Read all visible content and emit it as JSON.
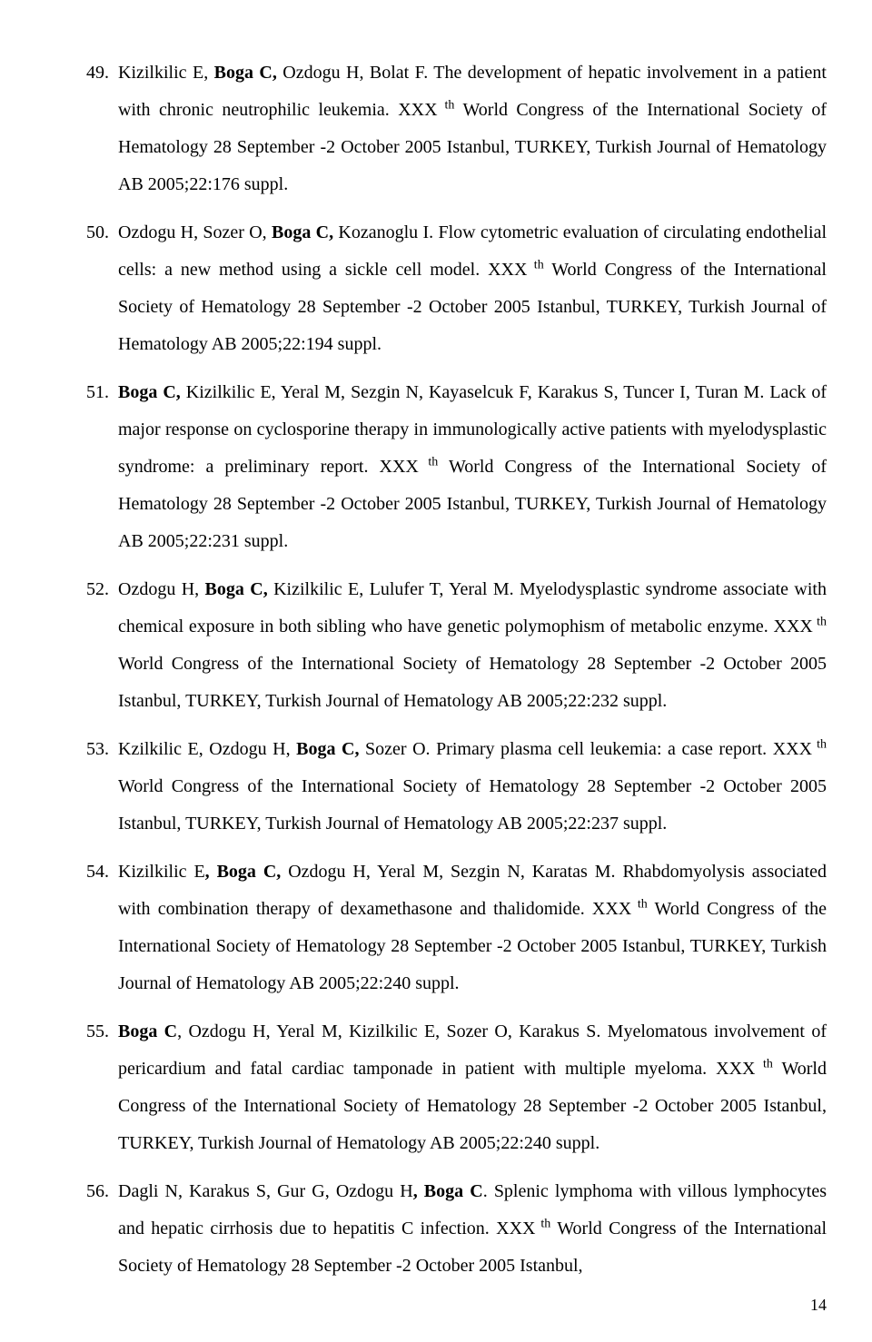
{
  "page_number": "14",
  "items": [
    {
      "authors_pre": "Kizilkilic E, ",
      "authors_bold": "Boga C,",
      "authors_post": " Ozdogu H, Bolat F. ",
      "title": "The development of hepatic involvement in a patient with chronic neutrophilic leukemia.",
      "venue_pre": " XXX",
      "venue_post": " World Congress of the International Society of Hematology 28 September -2 October 2005 Istanbul, TURKEY, Turkish Journal of Hematology AB 2005;22:176 suppl."
    },
    {
      "authors_pre": "Ozdogu H, Sozer O, ",
      "authors_bold": "Boga C,",
      "authors_post": " Kozanoglu I. ",
      "title": "Flow cytometric evaluation of circulating endothelial cells: a new method using a sickle cell model.",
      "venue_pre": " XXX",
      "venue_post": " World Congress of the International Society of Hematology 28 September -2 October 2005 Istanbul, TURKEY, Turkish Journal of Hematology AB 2005;22:194 suppl."
    },
    {
      "authors_pre": "",
      "authors_bold": "Boga C,",
      "authors_post": " Kizilkilic E, Yeral M, Sezgin N, Kayaselcuk F, Karakus S, Tuncer  I, Turan M. ",
      "title": "Lack of major response on cyclosporine therapy in immunologically active patients with myelodysplastic syndrome: a preliminary report.",
      "venue_pre": " XXX",
      "venue_post": " World Congress of the International Society of Hematology 28 September -2 October 2005 Istanbul, TURKEY, Turkish Journal of Hematology AB 2005;22:231 suppl."
    },
    {
      "authors_pre": "Ozdogu H, ",
      "authors_bold": "Boga C,",
      "authors_post": " Kizilkilic E, Lulufer T, Yeral M. ",
      "title": "Myelodysplastic syndrome associate with chemical exposure in both sibling who have genetic polymophism of metabolic enzyme.",
      "venue_pre": " XXX",
      "venue_post": " World Congress of the International Society of Hematology 28 September -2 October 2005 Istanbul, TURKEY, Turkish Journal of Hematology AB 2005;22:232 suppl."
    },
    {
      "authors_pre": "Kzilkilic E, Ozdogu  H, ",
      "authors_bold": "Boga C,",
      "authors_post": " Sozer O. ",
      "title": "Primary plasma cell leukemia: a case report.",
      "venue_pre": " XXX",
      "venue_post": " World Congress of the International Society of Hematology 28 September -2 October 2005 Istanbul, TURKEY, Turkish Journal of Hematology AB 2005;22:237 suppl."
    },
    {
      "authors_pre": "Kizilkilic E",
      "authors_bold": ", Boga C,",
      "authors_post": " Ozdogu H, Yeral M, Sezgin N, Karatas M. ",
      "title": "Rhabdomyolysis associated with combination therapy of dexamethasone and thalidomide.",
      "venue_pre": " XXX",
      "venue_post": " World Congress of the International Society of Hematology 28 September -2 October 2005 Istanbul, TURKEY, Turkish Journal of Hematology AB 2005;22:240 suppl."
    },
    {
      "authors_pre": "",
      "authors_bold": "Boga C",
      "authors_post": ", Ozdogu H, Yeral M, Kizilkilic E, Sozer O, Karakus S. ",
      "title": "Myelomatous involvement of pericardium and fatal cardiac tamponade in patient with multiple myeloma.",
      "venue_pre": " XXX",
      "venue_post": " World Congress of the International Society of Hematology 28 September -2 October 2005 Istanbul, TURKEY, Turkish Journal of Hematology AB 2005;22:240 suppl."
    },
    {
      "authors_pre": "Dagli N, Karakus S, Gur G, Ozdogu H",
      "authors_bold": ", Boga C",
      "authors_post": ". ",
      "title": "Splenic lymphoma with villous lymphocytes and hepatic cirrhosis due to hepatitis C infection.",
      "venue_pre": " XXX",
      "venue_post": " World Congress of the International Society of Hematology 28 September -2 October 2005 Istanbul,"
    }
  ],
  "superscript": " th"
}
